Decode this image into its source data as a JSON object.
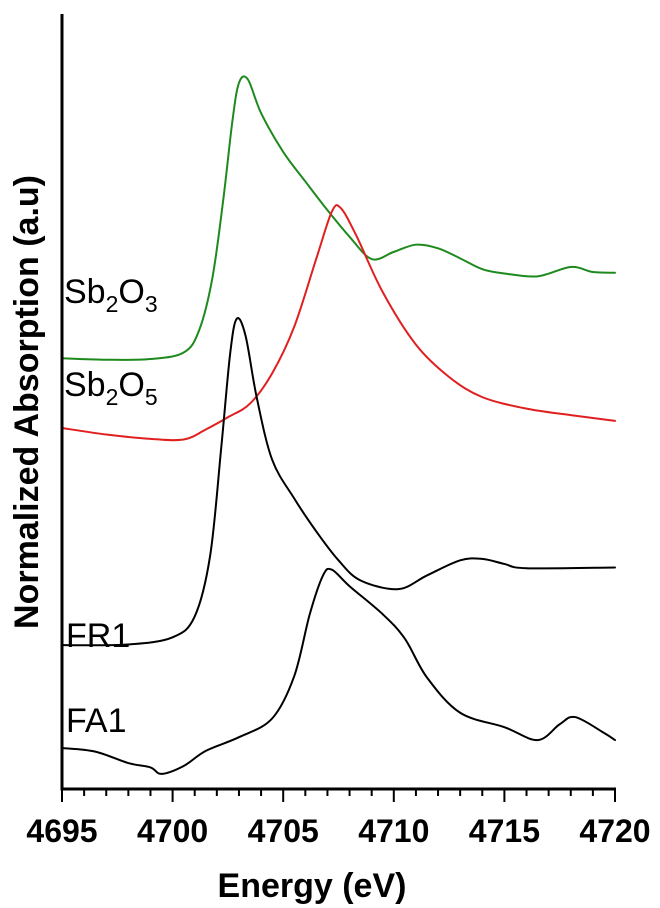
{
  "chart_data": {
    "type": "line",
    "xlabel": "Energy (eV)",
    "ylabel": "Normalized Absorption (a.u)",
    "xlim": [
      4695,
      4720
    ],
    "ylim": [
      0,
      1
    ],
    "x_ticks": [
      "4695",
      "4700",
      "4705",
      "4710",
      "4715",
      "4720"
    ],
    "y_ticks_visible": false,
    "grid": false,
    "legend": "none (inline labels at left)",
    "series": [
      {
        "name": "Sb2O3",
        "label_parts": [
          "Sb",
          "2",
          "O",
          "3"
        ],
        "color": "#1e8a1e",
        "points": [
          [
            4695,
            0.574
          ],
          [
            4697,
            0.572
          ],
          [
            4699,
            0.573
          ],
          [
            4700.5,
            0.582
          ],
          [
            4701.2,
            0.613
          ],
          [
            4701.8,
            0.686
          ],
          [
            4702.3,
            0.797
          ],
          [
            4702.7,
            0.903
          ],
          [
            4703.0,
            0.957
          ],
          [
            4703.4,
            0.962
          ],
          [
            4704.0,
            0.915
          ],
          [
            4705,
            0.861
          ],
          [
            4706,
            0.82
          ],
          [
            4707,
            0.78
          ],
          [
            4708,
            0.743
          ],
          [
            4709,
            0.712
          ],
          [
            4710,
            0.722
          ],
          [
            4711,
            0.732
          ],
          [
            4712,
            0.727
          ],
          [
            4713,
            0.713
          ],
          [
            4714,
            0.698
          ],
          [
            4715,
            0.692
          ],
          [
            4716.5,
            0.688
          ],
          [
            4718,
            0.701
          ],
          [
            4719,
            0.694
          ],
          [
            4720,
            0.693
          ]
        ]
      },
      {
        "name": "Sb2O5",
        "label_parts": [
          "Sb",
          "2",
          "O",
          "5"
        ],
        "color": "#e02020",
        "points": [
          [
            4695,
            0.477
          ],
          [
            4697,
            0.468
          ],
          [
            4699,
            0.462
          ],
          [
            4700.5,
            0.461
          ],
          [
            4701.5,
            0.475
          ],
          [
            4702.5,
            0.492
          ],
          [
            4703.5,
            0.511
          ],
          [
            4704.5,
            0.553
          ],
          [
            4705.5,
            0.618
          ],
          [
            4706.5,
            0.713
          ],
          [
            4707.2,
            0.778
          ],
          [
            4707.6,
            0.783
          ],
          [
            4708.3,
            0.745
          ],
          [
            4709.5,
            0.666
          ],
          [
            4711,
            0.593
          ],
          [
            4712.5,
            0.548
          ],
          [
            4714,
            0.52
          ],
          [
            4716,
            0.504
          ],
          [
            4718,
            0.495
          ],
          [
            4720,
            0.487
          ]
        ]
      },
      {
        "name": "FR1",
        "color": "#000000",
        "points": [
          [
            4695,
            0.175
          ],
          [
            4698,
            0.176
          ],
          [
            4700,
            0.186
          ],
          [
            4701,
            0.215
          ],
          [
            4701.7,
            0.3
          ],
          [
            4702.2,
            0.45
          ],
          [
            4702.6,
            0.58
          ],
          [
            4702.9,
            0.629
          ],
          [
            4703.3,
            0.605
          ],
          [
            4703.8,
            0.52
          ],
          [
            4704.5,
            0.433
          ],
          [
            4705.5,
            0.379
          ],
          [
            4706.5,
            0.333
          ],
          [
            4707.5,
            0.293
          ],
          [
            4708.5,
            0.265
          ],
          [
            4710.2,
            0.253
          ],
          [
            4711.5,
            0.272
          ],
          [
            4713,
            0.293
          ],
          [
            4714,
            0.295
          ],
          [
            4715,
            0.288
          ],
          [
            4716,
            0.282
          ],
          [
            4720,
            0.283
          ]
        ]
      },
      {
        "name": "FA1",
        "color": "#000000",
        "points": [
          [
            4695,
            0.032
          ],
          [
            4696.5,
            0.027
          ],
          [
            4698,
            0.011
          ],
          [
            4699,
            0.005
          ],
          [
            4699.5,
            -0.004
          ],
          [
            4700.5,
            0.007
          ],
          [
            4701.5,
            0.028
          ],
          [
            4703,
            0.047
          ],
          [
            4704.5,
            0.073
          ],
          [
            4705.5,
            0.132
          ],
          [
            4706.2,
            0.218
          ],
          [
            4706.8,
            0.272
          ],
          [
            4707.2,
            0.28
          ],
          [
            4708,
            0.257
          ],
          [
            4709.5,
            0.218
          ],
          [
            4710.5,
            0.184
          ],
          [
            4711.5,
            0.13
          ],
          [
            4713,
            0.081
          ],
          [
            4715,
            0.061
          ],
          [
            4716.5,
            0.043
          ],
          [
            4717.5,
            0.065
          ],
          [
            4718.2,
            0.075
          ],
          [
            4719.5,
            0.053
          ],
          [
            4720,
            0.043
          ]
        ]
      }
    ]
  }
}
